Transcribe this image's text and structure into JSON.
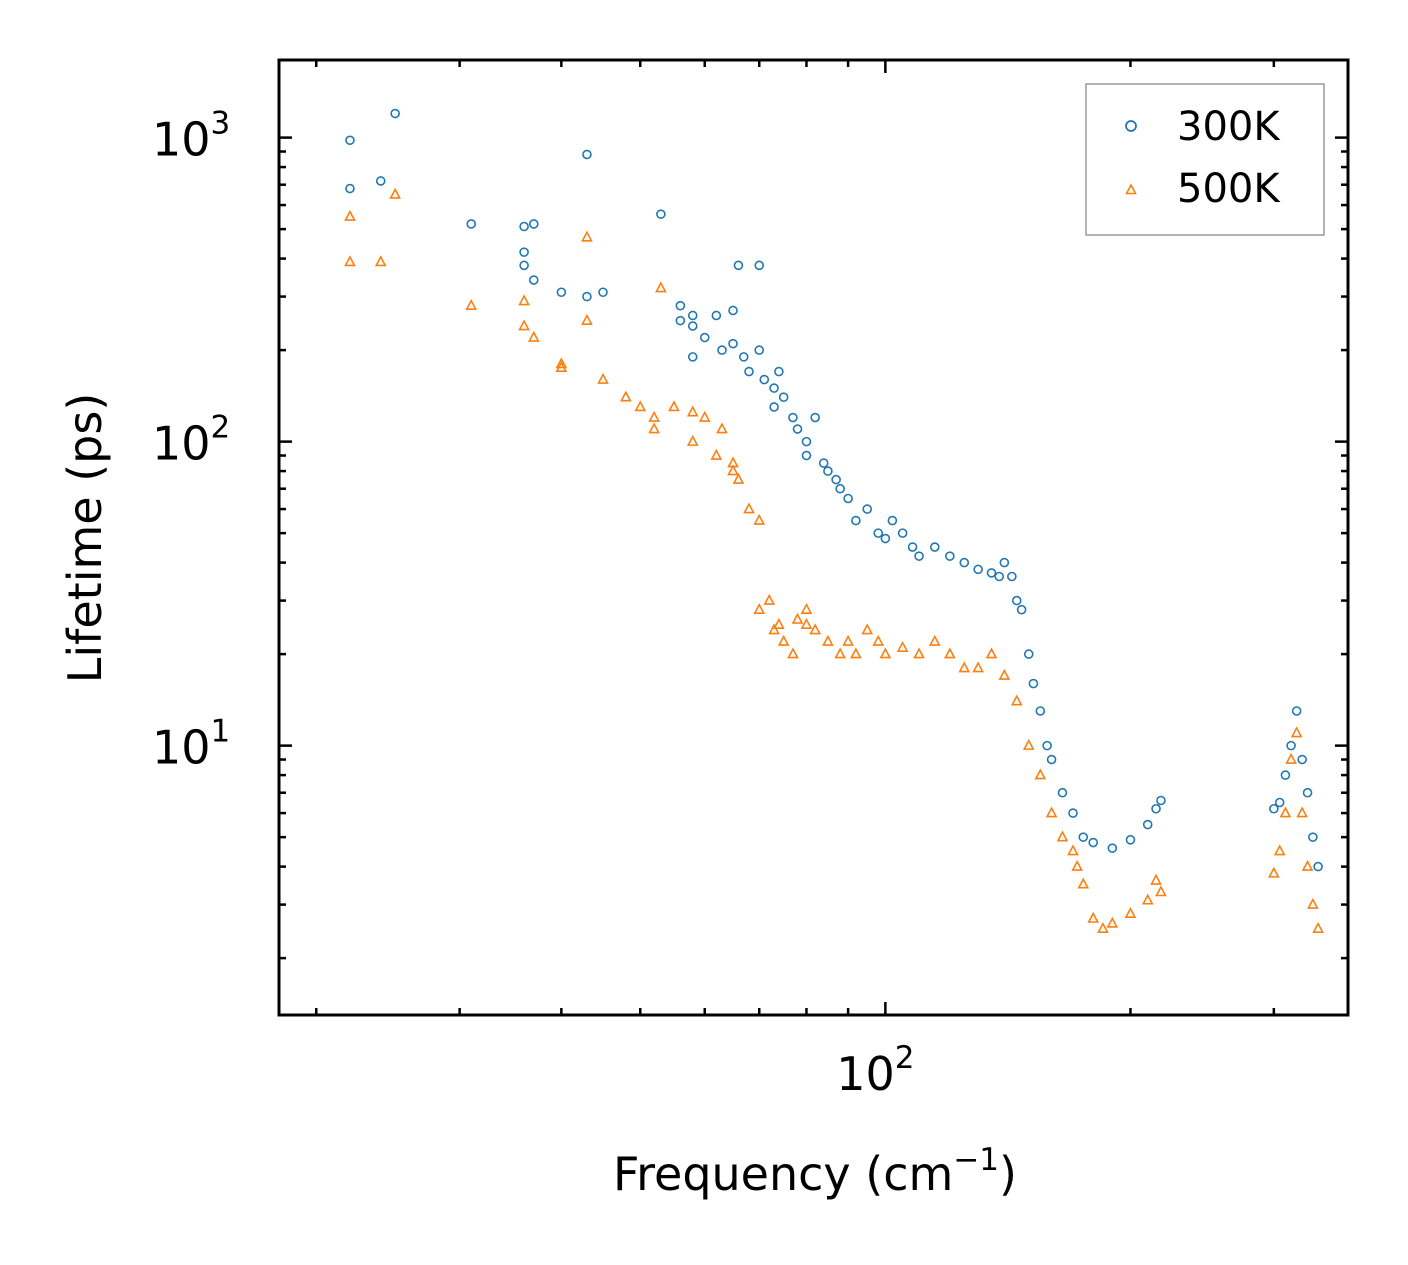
{
  "chart_data": {
    "type": "scatter",
    "title": "",
    "xlabel": "Frequency (cm",
    "xlabel_exp": "−1",
    "xlabel_close": ")",
    "ylabel": "Lifetime (ps)",
    "xscale": "log",
    "yscale": "log",
    "xlim": [
      18,
      370
    ],
    "ylim": [
      1.3,
      1800
    ],
    "legend_position": "top-right",
    "colors": {
      "300K": "#1f77b4",
      "500K": "#ff7f0e"
    },
    "x_major_ticks": [
      {
        "value": 100,
        "base": "10",
        "exp": "2"
      }
    ],
    "y_major_ticks": [
      {
        "value": 10,
        "base": "10",
        "exp": "1"
      },
      {
        "value": 100,
        "base": "10",
        "exp": "2"
      },
      {
        "value": 1000,
        "base": "10",
        "exp": "3"
      }
    ],
    "series": [
      {
        "name": "300K",
        "marker": "circle",
        "x": [
          22,
          22,
          24,
          25,
          31,
          36,
          36,
          36,
          37,
          37,
          40,
          43,
          43,
          45,
          53,
          56,
          56,
          58,
          58,
          58,
          60,
          62,
          63,
          65,
          65,
          66,
          67,
          68,
          70,
          70,
          71,
          73,
          73,
          74,
          75,
          77,
          78,
          80,
          80,
          82,
          84,
          85,
          87,
          88,
          90,
          92,
          95,
          98,
          100,
          102,
          105,
          108,
          110,
          115,
          120,
          125,
          130,
          135,
          138,
          140,
          143,
          145,
          147,
          150,
          152,
          155,
          158,
          160,
          165,
          170,
          175,
          180,
          190,
          200,
          210,
          215,
          218,
          300,
          305,
          310,
          315,
          320,
          325,
          330,
          335,
          340
        ],
        "y": [
          980,
          680,
          720,
          1200,
          520,
          510,
          420,
          380,
          340,
          520,
          310,
          300,
          880,
          310,
          560,
          280,
          250,
          240,
          260,
          190,
          220,
          260,
          200,
          270,
          210,
          380,
          190,
          170,
          200,
          380,
          160,
          150,
          130,
          170,
          140,
          120,
          110,
          100,
          90,
          120,
          85,
          80,
          75,
          70,
          65,
          55,
          60,
          50,
          48,
          55,
          50,
          45,
          42,
          45,
          42,
          40,
          38,
          37,
          36,
          40,
          36,
          30,
          28,
          20,
          16,
          13,
          10,
          9,
          7,
          6,
          5,
          4.8,
          4.6,
          4.9,
          5.5,
          6.2,
          6.6,
          6.2,
          6.5,
          8,
          10,
          13,
          9,
          7,
          5,
          4
        ]
      },
      {
        "name": "500K",
        "marker": "triangle",
        "x": [
          22,
          22,
          24,
          25,
          31,
          36,
          36,
          37,
          40,
          40,
          43,
          43,
          45,
          48,
          50,
          52,
          52,
          53,
          55,
          58,
          58,
          60,
          62,
          63,
          65,
          65,
          66,
          68,
          70,
          70,
          72,
          73,
          74,
          75,
          77,
          78,
          80,
          80,
          82,
          85,
          88,
          90,
          92,
          95,
          98,
          100,
          105,
          110,
          115,
          120,
          125,
          130,
          135,
          140,
          145,
          150,
          155,
          160,
          165,
          170,
          172,
          175,
          180,
          185,
          190,
          200,
          210,
          215,
          218,
          300,
          305,
          310,
          315,
          320,
          325,
          330,
          335,
          340
        ],
        "y": [
          550,
          390,
          390,
          650,
          280,
          290,
          240,
          220,
          180,
          175,
          250,
          470,
          160,
          140,
          130,
          120,
          110,
          320,
          130,
          125,
          100,
          120,
          90,
          110,
          85,
          80,
          75,
          60,
          55,
          28,
          30,
          24,
          25,
          22,
          20,
          26,
          25,
          28,
          24,
          22,
          20,
          22,
          20,
          24,
          22,
          20,
          21,
          20,
          22,
          20,
          18,
          18,
          20,
          17,
          14,
          10,
          8,
          6,
          5,
          4.5,
          4,
          3.5,
          2.7,
          2.5,
          2.6,
          2.8,
          3.1,
          3.6,
          3.3,
          3.8,
          4.5,
          6,
          9,
          11,
          6,
          4,
          3,
          2.5
        ]
      }
    ]
  }
}
